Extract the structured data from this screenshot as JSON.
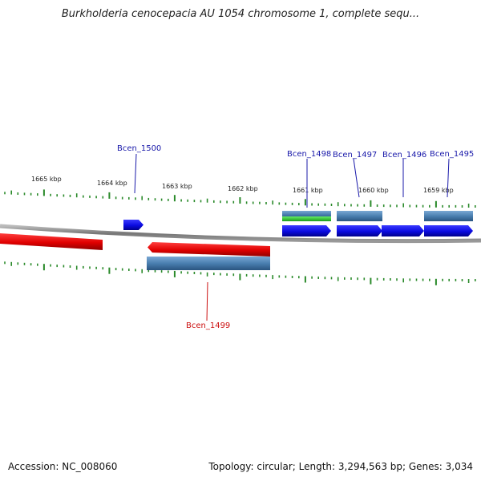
{
  "title": "Burkholderia cenocepacia AU 1054 chromosome 1, complete sequ...",
  "footer": {
    "accession": "Accession: NC_008060",
    "summary": "Topology: circular; Length: 3,294,563 bp; Genes: 3,034"
  },
  "colors": {
    "forward_gene": "#1010ee",
    "reverse_gene": "#ee1111",
    "cds_steel": "#4a7fb0",
    "rna_green": "#33cc33",
    "ticks": "#2a8a2a",
    "backbone": "#888888",
    "label_blue": "#1a1aaa",
    "label_red": "#cc1111"
  },
  "kbp_labels": [
    "1665 kbp",
    "1664 kbp",
    "1663 kbp",
    "1662 kbp",
    "1661 kbp",
    "1660 kbp",
    "1659 kbp"
  ],
  "gene_labels": [
    {
      "text": "Bcen_1500",
      "strand": "forward"
    },
    {
      "text": "Bcen_1498",
      "strand": "forward"
    },
    {
      "text": "Bcen_1497",
      "strand": "forward"
    },
    {
      "text": "Bcen_1496",
      "strand": "forward"
    },
    {
      "text": "Bcen_1495",
      "strand": "forward"
    },
    {
      "text": "Bcen_1499",
      "strand": "reverse"
    }
  ]
}
